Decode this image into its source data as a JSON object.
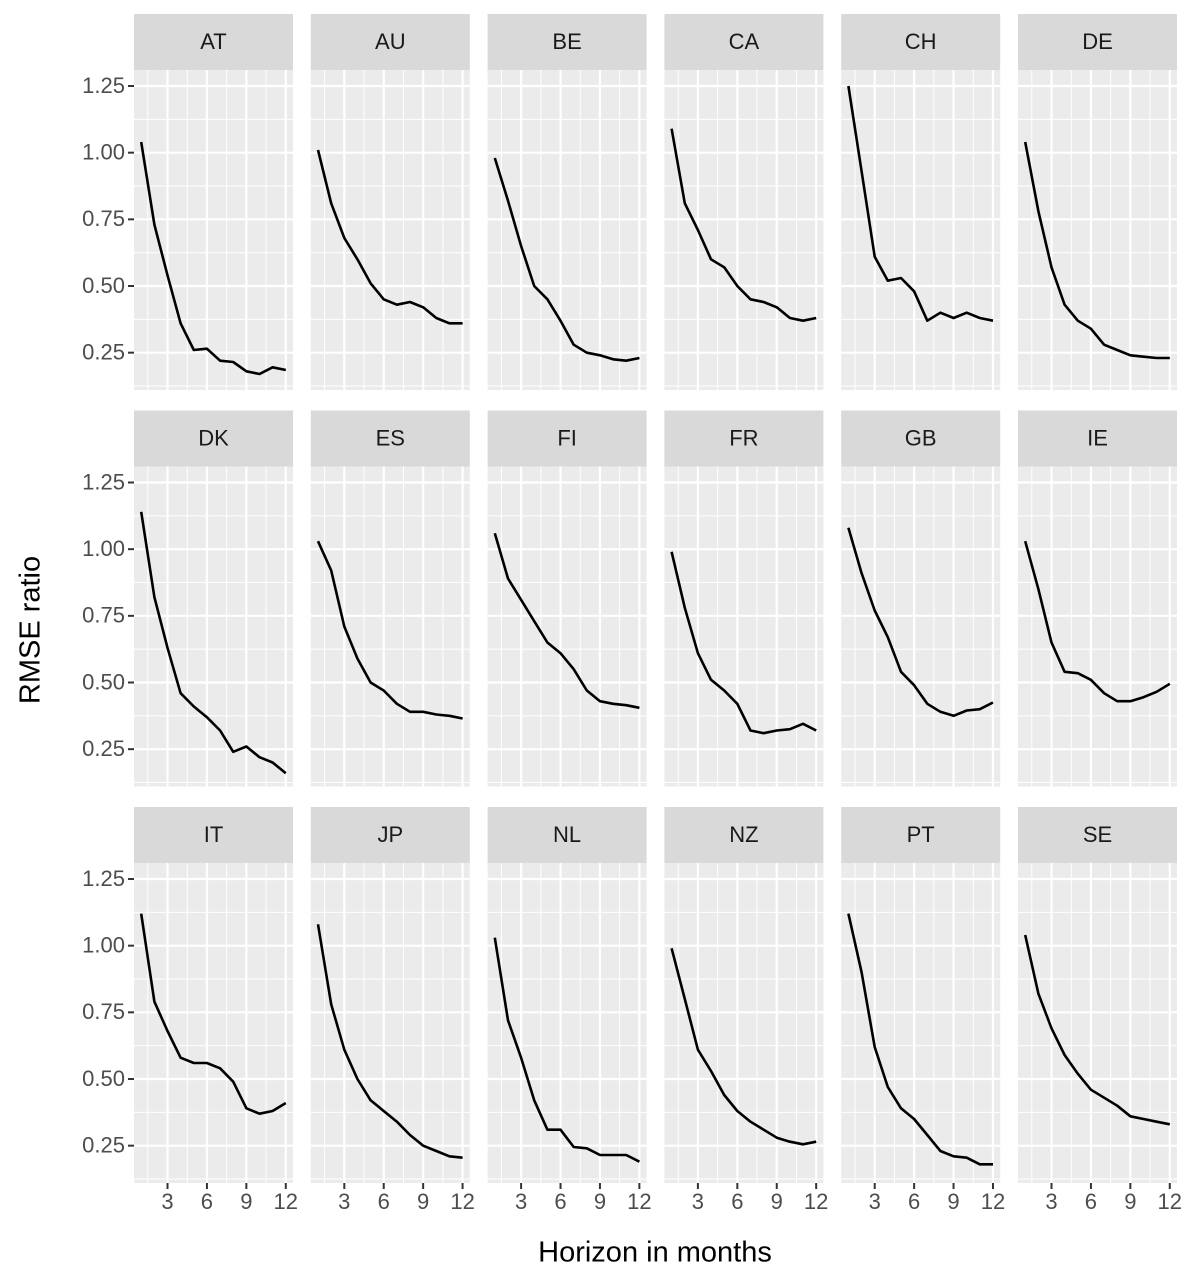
{
  "chart_data": {
    "type": "line",
    "xlabel": "Horizon in months",
    "ylabel": "RMSE ratio",
    "x": [
      1,
      2,
      3,
      4,
      5,
      6,
      7,
      8,
      9,
      10,
      11,
      12
    ],
    "xlim": [
      0.45,
      12.55
    ],
    "ylim": [
      0.11,
      1.31
    ],
    "xticks": [
      3,
      6,
      9,
      12
    ],
    "yticks": [
      0.25,
      {
        "value": 0.5,
        "label": "0.50"
      },
      0.75,
      {
        "value": 1,
        "label": "1.00"
      },
      1.25
    ],
    "grid": true,
    "color": "#000000",
    "panels": [
      {
        "name": "AT",
        "values": [
          1.04,
          0.73,
          0.54,
          0.36,
          0.26,
          0.265,
          0.22,
          0.215,
          0.18,
          0.17,
          0.195,
          0.185
        ]
      },
      {
        "name": "AU",
        "values": [
          1.01,
          0.81,
          0.68,
          0.6,
          0.51,
          0.45,
          0.43,
          0.44,
          0.42,
          0.38,
          0.36,
          0.36
        ]
      },
      {
        "name": "BE",
        "values": [
          0.98,
          0.82,
          0.65,
          0.5,
          0.45,
          0.37,
          0.28,
          0.25,
          0.24,
          0.225,
          0.22,
          0.23
        ]
      },
      {
        "name": "CA",
        "values": [
          1.09,
          0.81,
          0.71,
          0.6,
          0.57,
          0.5,
          0.45,
          0.44,
          0.42,
          0.38,
          0.37,
          0.38
        ]
      },
      {
        "name": "CH",
        "values": [
          1.25,
          0.93,
          0.61,
          0.52,
          0.53,
          0.48,
          0.37,
          0.4,
          0.38,
          0.4,
          0.38,
          0.37
        ]
      },
      {
        "name": "DE",
        "values": [
          1.04,
          0.78,
          0.57,
          0.43,
          0.37,
          0.34,
          0.28,
          0.26,
          0.24,
          0.235,
          0.23,
          0.23
        ]
      },
      {
        "name": "DK",
        "values": [
          1.14,
          0.82,
          0.63,
          0.46,
          0.41,
          0.37,
          0.32,
          0.24,
          0.26,
          0.22,
          0.2,
          0.16
        ]
      },
      {
        "name": "ES",
        "values": [
          1.03,
          0.92,
          0.71,
          0.59,
          0.5,
          0.47,
          0.42,
          0.39,
          0.39,
          0.38,
          0.375,
          0.365
        ]
      },
      {
        "name": "FI",
        "values": [
          1.06,
          0.89,
          0.81,
          0.73,
          0.65,
          0.61,
          0.55,
          0.47,
          0.43,
          0.42,
          0.415,
          0.405
        ]
      },
      {
        "name": "FR",
        "values": [
          0.99,
          0.78,
          0.61,
          0.51,
          0.47,
          0.42,
          0.32,
          0.31,
          0.32,
          0.325,
          0.345,
          0.32
        ]
      },
      {
        "name": "GB",
        "values": [
          1.08,
          0.91,
          0.77,
          0.67,
          0.54,
          0.49,
          0.42,
          0.39,
          0.375,
          0.395,
          0.4,
          0.425
        ]
      },
      {
        "name": "IE",
        "values": [
          1.03,
          0.85,
          0.65,
          0.54,
          0.535,
          0.51,
          0.46,
          0.43,
          0.43,
          0.445,
          0.465,
          0.495
        ]
      },
      {
        "name": "IT",
        "values": [
          1.12,
          0.79,
          0.68,
          0.58,
          0.56,
          0.56,
          0.54,
          0.49,
          0.39,
          0.37,
          0.38,
          0.41
        ]
      },
      {
        "name": "JP",
        "values": [
          1.08,
          0.78,
          0.61,
          0.5,
          0.42,
          0.38,
          0.34,
          0.29,
          0.25,
          0.23,
          0.21,
          0.205
        ]
      },
      {
        "name": "NL",
        "values": [
          1.03,
          0.72,
          0.58,
          0.42,
          0.31,
          0.31,
          0.245,
          0.24,
          0.215,
          0.215,
          0.215,
          0.19
        ]
      },
      {
        "name": "NZ",
        "values": [
          0.99,
          0.8,
          0.61,
          0.53,
          0.44,
          0.38,
          0.34,
          0.31,
          0.28,
          0.265,
          0.255,
          0.265
        ]
      },
      {
        "name": "PT",
        "values": [
          1.12,
          0.9,
          0.62,
          0.47,
          0.39,
          0.35,
          0.29,
          0.23,
          0.21,
          0.205,
          0.18,
          0.18
        ]
      },
      {
        "name": "SE",
        "values": [
          1.04,
          0.82,
          0.69,
          0.59,
          0.52,
          0.46,
          0.43,
          0.4,
          0.36,
          0.35,
          0.34,
          0.33
        ]
      }
    ]
  }
}
